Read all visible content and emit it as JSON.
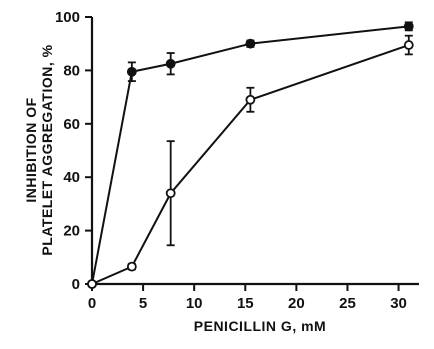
{
  "chart_data": {
    "type": "line",
    "xlabel": "PENICILLIN G, mM",
    "ylabel_lines": [
      "INHIBITION OF",
      "PLATELET AGGREGATION, %"
    ],
    "xlim": [
      0,
      32
    ],
    "ylim": [
      0,
      100
    ],
    "xticks": [
      0,
      5,
      10,
      15,
      20,
      25,
      30
    ],
    "yticks": [
      0,
      20,
      40,
      60,
      80,
      100
    ],
    "legend": "none",
    "grid": false,
    "series": [
      {
        "marker": "filled-circle",
        "color": "#111111",
        "points": [
          {
            "x": 0,
            "y": 0,
            "err": 0
          },
          {
            "x": 3.9,
            "y": 79.5,
            "err": 3.5
          },
          {
            "x": 7.7,
            "y": 82.5,
            "err": 4
          },
          {
            "x": 15.5,
            "y": 90,
            "err": 1.2
          },
          {
            "x": 31,
            "y": 96.5,
            "err": 1.5
          }
        ]
      },
      {
        "marker": "open-circle",
        "color": "#111111",
        "points": [
          {
            "x": 0,
            "y": 0,
            "err": 0
          },
          {
            "x": 3.9,
            "y": 6.5,
            "err": 1
          },
          {
            "x": 7.7,
            "y": 34,
            "err": 19.5
          },
          {
            "x": 15.5,
            "y": 69,
            "err": 4.5
          },
          {
            "x": 31,
            "y": 89.5,
            "err": 3.5
          }
        ]
      }
    ]
  }
}
